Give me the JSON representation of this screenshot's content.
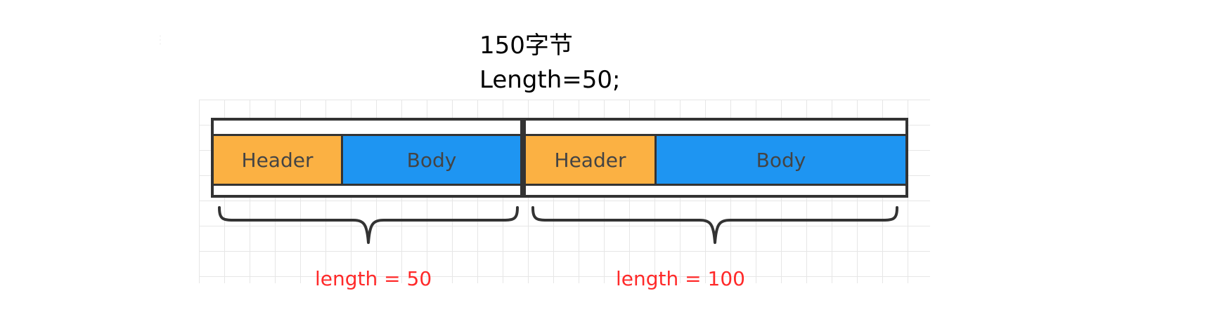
{
  "title": {
    "line1": "150字节",
    "line2": "Length=50;"
  },
  "packets": [
    {
      "header_label": "Header",
      "body_label": "Body",
      "length_label": "length = 50"
    },
    {
      "header_label": "Header",
      "body_label": "Body",
      "length_label": "length = 100"
    }
  ],
  "colors": {
    "header": "#fbb143",
    "body": "#1e95f2",
    "outline": "#333333",
    "length_text": "#ff2a2a",
    "grid": "#e6e6e6"
  }
}
